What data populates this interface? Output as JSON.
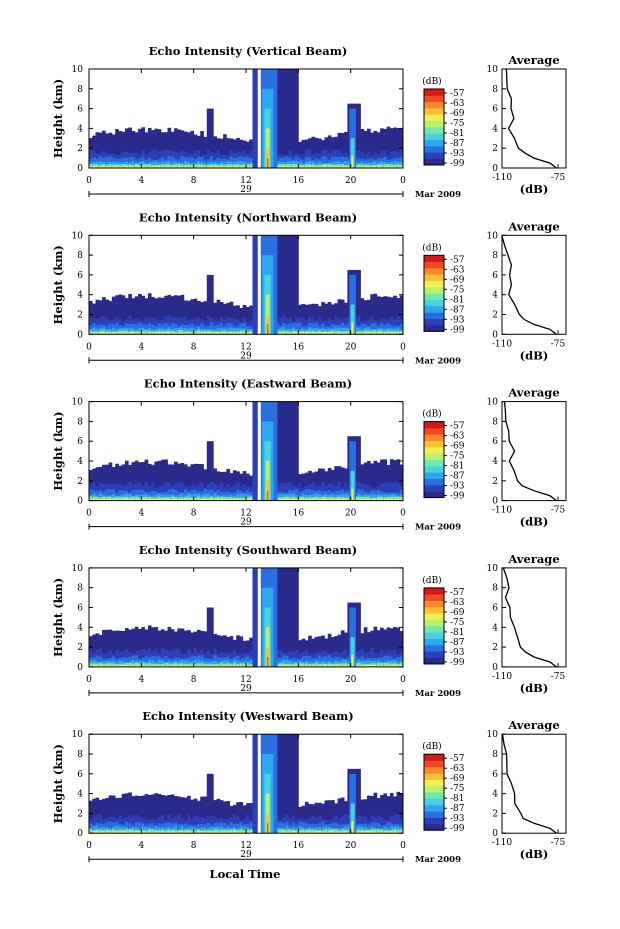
{
  "colors": {
    "scale": [
      "#2a2a8c",
      "#2c3fb8",
      "#2a6fe0",
      "#2fa6f0",
      "#48d2e0",
      "#6ee8b0",
      "#b8f070",
      "#f0f050",
      "#f8c038",
      "#f88a2a",
      "#f04a22",
      "#d81818"
    ],
    "background": "#ffffff"
  },
  "x_axis_label": "Local Time",
  "date_label": "Mar 2009",
  "panels": [
    {
      "title": "Echo Intensity (Vertical Beam)",
      "day": "29"
    },
    {
      "title": "Echo Intensity (Northward Beam)",
      "day": "29"
    },
    {
      "title": "Echo Intensity (Eastward Beam)",
      "day": "29"
    },
    {
      "title": "Echo Intensity (Southward Beam)",
      "day": "29"
    },
    {
      "title": "Echo Intensity (Westward Beam)",
      "day": "29"
    }
  ],
  "colorbar": {
    "unit": "(dB)",
    "ticks": [
      "-57",
      "-63",
      "-69",
      "-75",
      "-81",
      "-87",
      "-93",
      "-99"
    ]
  },
  "average": {
    "title": "Average",
    "xlabel": "(dB)",
    "xticks": [
      "-110",
      "-75"
    ],
    "yticks": [
      "0",
      "2",
      "4",
      "6",
      "8",
      "10"
    ]
  },
  "chart_data": {
    "type": "heatmap",
    "ylabel": "Height (km)",
    "xlabel": "Local Time",
    "xticks": [
      "0",
      "4",
      "8",
      "12",
      "16",
      "20",
      "0"
    ],
    "yticks": [
      "0",
      "2",
      "4",
      "6",
      "8",
      "10"
    ],
    "xlim": [
      0,
      24
    ],
    "ylim": [
      0,
      10
    ],
    "color_range_db": [
      -99,
      -57
    ],
    "beams": [
      "Vertical",
      "Northward",
      "Eastward",
      "Southward",
      "Westward"
    ],
    "average_profile": {
      "height_km": [
        0,
        0.5,
        1,
        1.5,
        2,
        3,
        4,
        5,
        6,
        7,
        8,
        9,
        10
      ],
      "db": [
        -76,
        -80,
        -90,
        -96,
        -100,
        -102,
        -104,
        -104,
        -105,
        -106,
        -106,
        -108,
        -109
      ]
    }
  }
}
